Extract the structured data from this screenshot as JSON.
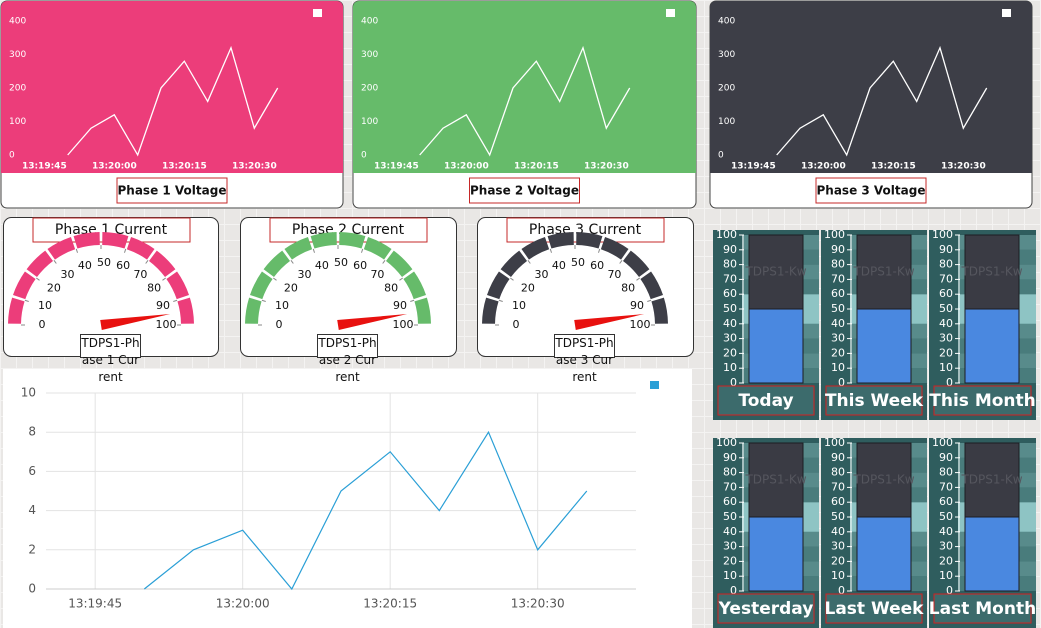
{
  "chart_data": [
    {
      "type": "line",
      "title": "Phase 1 Voltage",
      "background": "#ec3d7a",
      "x": [
        "13:19:50",
        "13:19:55",
        "13:20:00",
        "13:20:05",
        "13:20:10",
        "13:20:15",
        "13:20:20",
        "13:20:25",
        "13:20:30",
        "13:20:35"
      ],
      "series": [
        {
          "color": "#ffffff",
          "values": [
            0,
            80,
            120,
            0,
            200,
            280,
            160,
            320,
            80,
            200
          ]
        }
      ],
      "xlim": [
        "13:19:40",
        "13:20:40"
      ],
      "xticks": [
        "13:19:45",
        "13:20:00",
        "13:20:15",
        "13:20:30"
      ],
      "ylim": [
        0,
        400
      ],
      "yticks": [
        0,
        100,
        200,
        300,
        400
      ],
      "grid": false
    },
    {
      "type": "line",
      "title": "Phase 2 Voltage",
      "background": "#66bb6a",
      "x": [
        "13:19:50",
        "13:19:55",
        "13:20:00",
        "13:20:05",
        "13:20:10",
        "13:20:15",
        "13:20:20",
        "13:20:25",
        "13:20:30",
        "13:20:35"
      ],
      "series": [
        {
          "color": "#ffffff",
          "values": [
            0,
            80,
            120,
            0,
            200,
            280,
            160,
            320,
            80,
            200
          ]
        }
      ],
      "xlim": [
        "13:19:40",
        "13:20:40"
      ],
      "xticks": [
        "13:19:45",
        "13:20:00",
        "13:20:15",
        "13:20:30"
      ],
      "ylim": [
        0,
        400
      ],
      "yticks": [
        0,
        100,
        200,
        300,
        400
      ],
      "grid": false
    },
    {
      "type": "line",
      "title": "Phase 3 Voltage",
      "background": "#3d3e47",
      "x": [
        "13:19:50",
        "13:19:55",
        "13:20:00",
        "13:20:05",
        "13:20:10",
        "13:20:15",
        "13:20:20",
        "13:20:25",
        "13:20:30",
        "13:20:35"
      ],
      "series": [
        {
          "color": "#ffffff",
          "values": [
            0,
            80,
            120,
            0,
            200,
            280,
            160,
            320,
            80,
            200
          ]
        }
      ],
      "xlim": [
        "13:19:40",
        "13:20:40"
      ],
      "xticks": [
        "13:19:45",
        "13:20:00",
        "13:20:15",
        "13:20:30"
      ],
      "ylim": [
        0,
        400
      ],
      "yticks": [
        0,
        100,
        200,
        300,
        400
      ],
      "grid": false
    },
    {
      "type": "gauge",
      "title": "Phase 1 Current",
      "label": "TDPS1-Phase 1 Current",
      "value": 95,
      "color": "#ec3d7a",
      "ylim": [
        0,
        100
      ],
      "yticks": [
        0,
        10,
        20,
        30,
        40,
        50,
        60,
        70,
        80,
        90,
        100
      ]
    },
    {
      "type": "gauge",
      "title": "Phase 2 Current",
      "label": "TDPS1-Phase 2 Current",
      "value": 95,
      "color": "#66bb6a",
      "ylim": [
        0,
        100
      ],
      "yticks": [
        0,
        10,
        20,
        30,
        40,
        50,
        60,
        70,
        80,
        90,
        100
      ]
    },
    {
      "type": "gauge",
      "title": "Phase 3 Current",
      "label": "TDPS1-Phase 3 Current",
      "value": 95,
      "color": "#3d3e47",
      "ylim": [
        0,
        100
      ],
      "yticks": [
        0,
        10,
        20,
        30,
        40,
        50,
        60,
        70,
        80,
        90,
        100
      ]
    },
    {
      "type": "line",
      "background": "#ffffff",
      "x": [
        "13:19:50",
        "13:19:55",
        "13:20:00",
        "13:20:05",
        "13:20:10",
        "13:20:15",
        "13:20:20",
        "13:20:25",
        "13:20:30",
        "13:20:35"
      ],
      "series": [
        {
          "color": "#2a9fd6",
          "values": [
            0,
            2,
            3,
            0,
            5,
            7,
            4,
            8,
            2,
            5
          ]
        }
      ],
      "xlim": [
        "13:19:40",
        "13:20:40"
      ],
      "xticks": [
        "13:19:45",
        "13:20:00",
        "13:20:15",
        "13:20:30"
      ],
      "ylim": [
        0,
        10
      ],
      "yticks": [
        0,
        2,
        4,
        6,
        8,
        10
      ],
      "grid": true
    },
    {
      "type": "bar",
      "title": "Today",
      "categories": [
        "TDPS1-Kw"
      ],
      "values": [
        50
      ],
      "color": "#4a88e0",
      "ylim": [
        0,
        100
      ],
      "yticks": [
        0,
        10,
        20,
        30,
        40,
        50,
        60,
        70,
        80,
        90,
        100
      ]
    },
    {
      "type": "bar",
      "title": "This Week",
      "categories": [
        "TDPS1-Kw"
      ],
      "values": [
        50
      ],
      "color": "#4a88e0",
      "ylim": [
        0,
        100
      ],
      "yticks": [
        0,
        10,
        20,
        30,
        40,
        50,
        60,
        70,
        80,
        90,
        100
      ]
    },
    {
      "type": "bar",
      "title": "This Month",
      "categories": [
        "TDPS1-Kw"
      ],
      "values": [
        50
      ],
      "color": "#4a88e0",
      "ylim": [
        0,
        100
      ],
      "yticks": [
        0,
        10,
        20,
        30,
        40,
        50,
        60,
        70,
        80,
        90,
        100
      ]
    },
    {
      "type": "bar",
      "title": "Yesterday",
      "categories": [
        "TDPS1-Kw"
      ],
      "values": [
        50
      ],
      "color": "#4a88e0",
      "ylim": [
        0,
        100
      ],
      "yticks": [
        0,
        10,
        20,
        30,
        40,
        50,
        60,
        70,
        80,
        90,
        100
      ]
    },
    {
      "type": "bar",
      "title": "Last Week",
      "categories": [
        "TDPS1-Kw"
      ],
      "values": [
        50
      ],
      "color": "#4a88e0",
      "ylim": [
        0,
        100
      ],
      "yticks": [
        0,
        10,
        20,
        30,
        40,
        50,
        60,
        70,
        80,
        90,
        100
      ]
    },
    {
      "type": "bar",
      "title": "Last Month",
      "categories": [
        "TDPS1-Kw"
      ],
      "values": [
        50
      ],
      "color": "#4a88e0",
      "ylim": [
        0,
        100
      ],
      "yticks": [
        0,
        10,
        20,
        30,
        40,
        50,
        60,
        70,
        80,
        90,
        100
      ]
    }
  ]
}
